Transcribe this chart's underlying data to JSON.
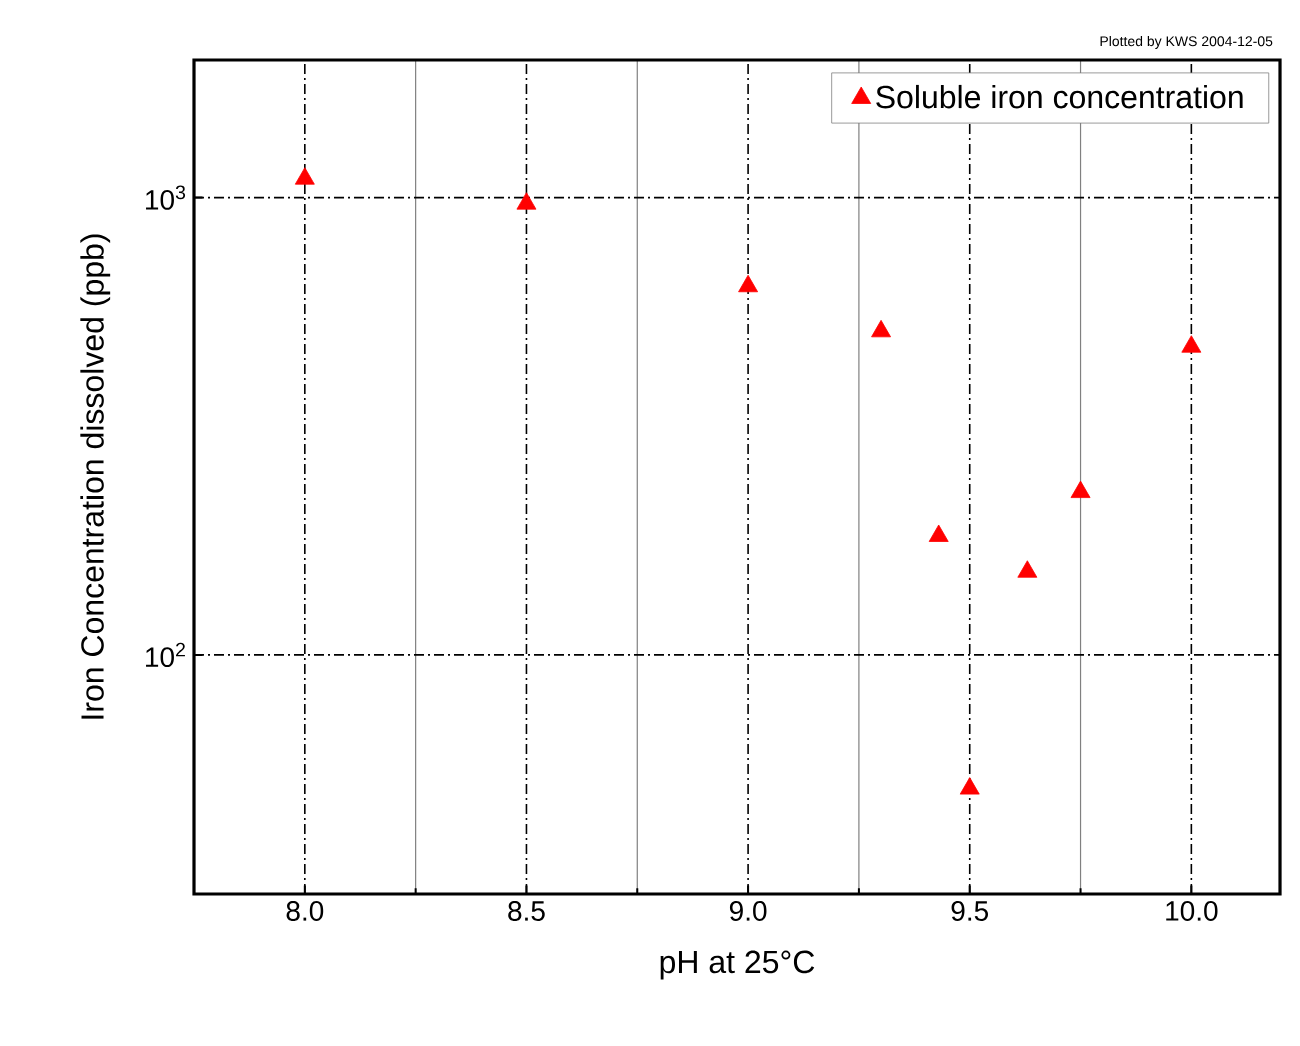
{
  "chart_data": {
    "type": "scatter",
    "xlabel": "pH at 25°C",
    "ylabel": "Iron Concentration dissolved (ppb)",
    "annotations": [
      "Plotted by KWS 2004-12-05"
    ],
    "x": [
      8.0,
      8.5,
      9.0,
      9.3,
      9.43,
      9.5,
      9.63,
      9.75,
      10.0
    ],
    "series": [
      {
        "name": "Soluble iron concentration",
        "color": "#ff0000",
        "values": [
          1100,
          970,
          640,
          510,
          182,
          51,
          152,
          227,
          472
        ]
      }
    ],
    "xlim": [
      7.75,
      10.2
    ],
    "ylim": [
      30,
      2000
    ],
    "xticks": [
      {
        "value": 8.0,
        "label": "8.0"
      },
      {
        "value": 8.5,
        "label": "8.5"
      },
      {
        "value": 9.0,
        "label": "9.0"
      },
      {
        "value": 9.5,
        "label": "9.5"
      },
      {
        "value": 10.0,
        "label": "10.0"
      }
    ],
    "yticks": [
      {
        "value": 100,
        "label": "10$^{2}$"
      },
      {
        "value": 1000,
        "label": "10$^{3}$"
      }
    ],
    "log": "y",
    "grid": true,
    "legend": "top right",
    "marker": "triangle"
  }
}
